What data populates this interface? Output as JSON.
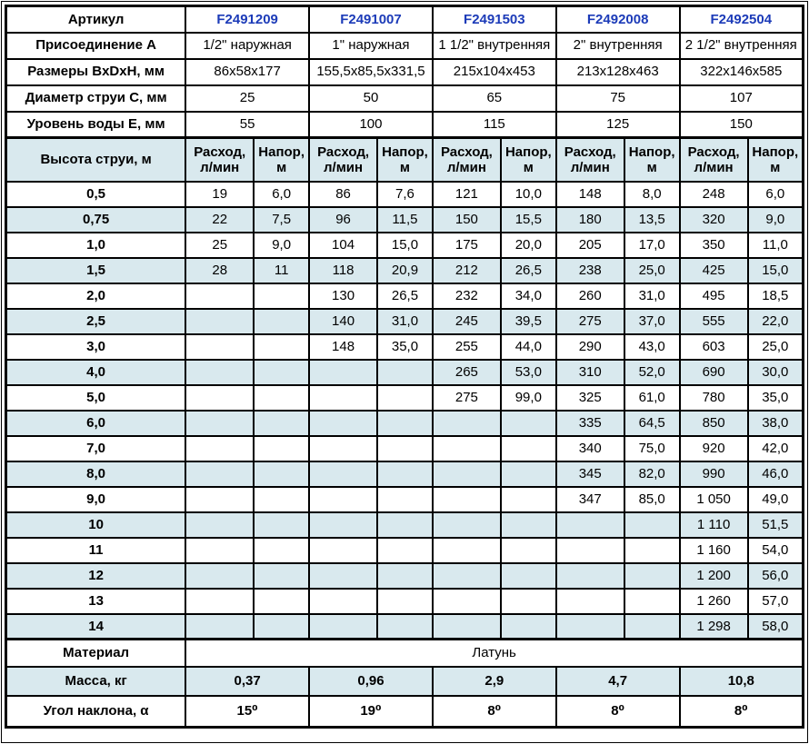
{
  "colors": {
    "stripe_blue": "#d9e9ee",
    "article_blue": "#1c3bb8",
    "border": "#000000",
    "background": "#ffffff"
  },
  "info_rows": [
    {
      "id": "article",
      "label": "Артикул",
      "values": [
        "F2491209",
        "F2491007",
        "F2491503",
        "F2492008",
        "F2492504"
      ]
    },
    {
      "id": "connection",
      "label": "Присоединение A",
      "values": [
        "1/2\" наружная",
        "1\" наружная",
        "1 1/2\" внутренняя",
        "2\" внутренняя",
        "2 1/2\" внутренняя"
      ]
    },
    {
      "id": "dimensions",
      "label": "Размеры BxDxH, мм",
      "values": [
        "86x58x177",
        "155,5x85,5x331,5",
        "215x104x453",
        "213x128x463",
        "322x146x585"
      ]
    },
    {
      "id": "jet-diameter",
      "label": "Диаметр струи C, мм",
      "values": [
        "25",
        "50",
        "65",
        "75",
        "107"
      ]
    },
    {
      "id": "water-level",
      "label": "Уровень воды E, мм",
      "values": [
        "55",
        "100",
        "115",
        "125",
        "150"
      ]
    }
  ],
  "flow_header": {
    "label": "Высота струи, м",
    "flow_label": "Расход,\nл/мин",
    "head_label": "Напор,\nм"
  },
  "flow_rows": [
    {
      "height": "0,5",
      "cells": [
        "19",
        "6,0",
        "86",
        "7,6",
        "121",
        "10,0",
        "148",
        "8,0",
        "248",
        "6,0"
      ]
    },
    {
      "height": "0,75",
      "cells": [
        "22",
        "7,5",
        "96",
        "11,5",
        "150",
        "15,5",
        "180",
        "13,5",
        "320",
        "9,0"
      ]
    },
    {
      "height": "1,0",
      "cells": [
        "25",
        "9,0",
        "104",
        "15,0",
        "175",
        "20,0",
        "205",
        "17,0",
        "350",
        "11,0"
      ]
    },
    {
      "height": "1,5",
      "cells": [
        "28",
        "11",
        "118",
        "20,9",
        "212",
        "26,5",
        "238",
        "25,0",
        "425",
        "15,0"
      ]
    },
    {
      "height": "2,0",
      "cells": [
        "",
        "",
        "130",
        "26,5",
        "232",
        "34,0",
        "260",
        "31,0",
        "495",
        "18,5"
      ]
    },
    {
      "height": "2,5",
      "cells": [
        "",
        "",
        "140",
        "31,0",
        "245",
        "39,5",
        "275",
        "37,0",
        "555",
        "22,0"
      ]
    },
    {
      "height": "3,0",
      "cells": [
        "",
        "",
        "148",
        "35,0",
        "255",
        "44,0",
        "290",
        "43,0",
        "603",
        "25,0"
      ]
    },
    {
      "height": "4,0",
      "cells": [
        "",
        "",
        "",
        "",
        "265",
        "53,0",
        "310",
        "52,0",
        "690",
        "30,0"
      ]
    },
    {
      "height": "5,0",
      "cells": [
        "",
        "",
        "",
        "",
        "275",
        "99,0",
        "325",
        "61,0",
        "780",
        "35,0"
      ]
    },
    {
      "height": "6,0",
      "cells": [
        "",
        "",
        "",
        "",
        "",
        "",
        "335",
        "64,5",
        "850",
        "38,0"
      ]
    },
    {
      "height": "7,0",
      "cells": [
        "",
        "",
        "",
        "",
        "",
        "",
        "340",
        "75,0",
        "920",
        "42,0"
      ]
    },
    {
      "height": "8,0",
      "cells": [
        "",
        "",
        "",
        "",
        "",
        "",
        "345",
        "82,0",
        "990",
        "46,0"
      ]
    },
    {
      "height": "9,0",
      "cells": [
        "",
        "",
        "",
        "",
        "",
        "",
        "347",
        "85,0",
        "1 050",
        "49,0"
      ]
    },
    {
      "height": "10",
      "cells": [
        "",
        "",
        "",
        "",
        "",
        "",
        "",
        "",
        "1 110",
        "51,5"
      ]
    },
    {
      "height": "11",
      "cells": [
        "",
        "",
        "",
        "",
        "",
        "",
        "",
        "",
        "1 160",
        "54,0"
      ]
    },
    {
      "height": "12",
      "cells": [
        "",
        "",
        "",
        "",
        "",
        "",
        "",
        "",
        "1 200",
        "56,0"
      ]
    },
    {
      "height": "13",
      "cells": [
        "",
        "",
        "",
        "",
        "",
        "",
        "",
        "",
        "1 260",
        "57,0"
      ]
    },
    {
      "height": "14",
      "cells": [
        "",
        "",
        "",
        "",
        "",
        "",
        "",
        "",
        "1 298",
        "58,0"
      ]
    }
  ],
  "footer": {
    "material": {
      "label": "Материал",
      "value": "Латунь"
    },
    "mass": {
      "label": "Масса, кг",
      "values": [
        "0,37",
        "0,96",
        "2,9",
        "4,7",
        "10,8"
      ]
    },
    "angle": {
      "label": "Угол наклона, α",
      "values": [
        "15⁰",
        "19⁰",
        "8⁰",
        "8⁰",
        "8⁰"
      ]
    }
  }
}
